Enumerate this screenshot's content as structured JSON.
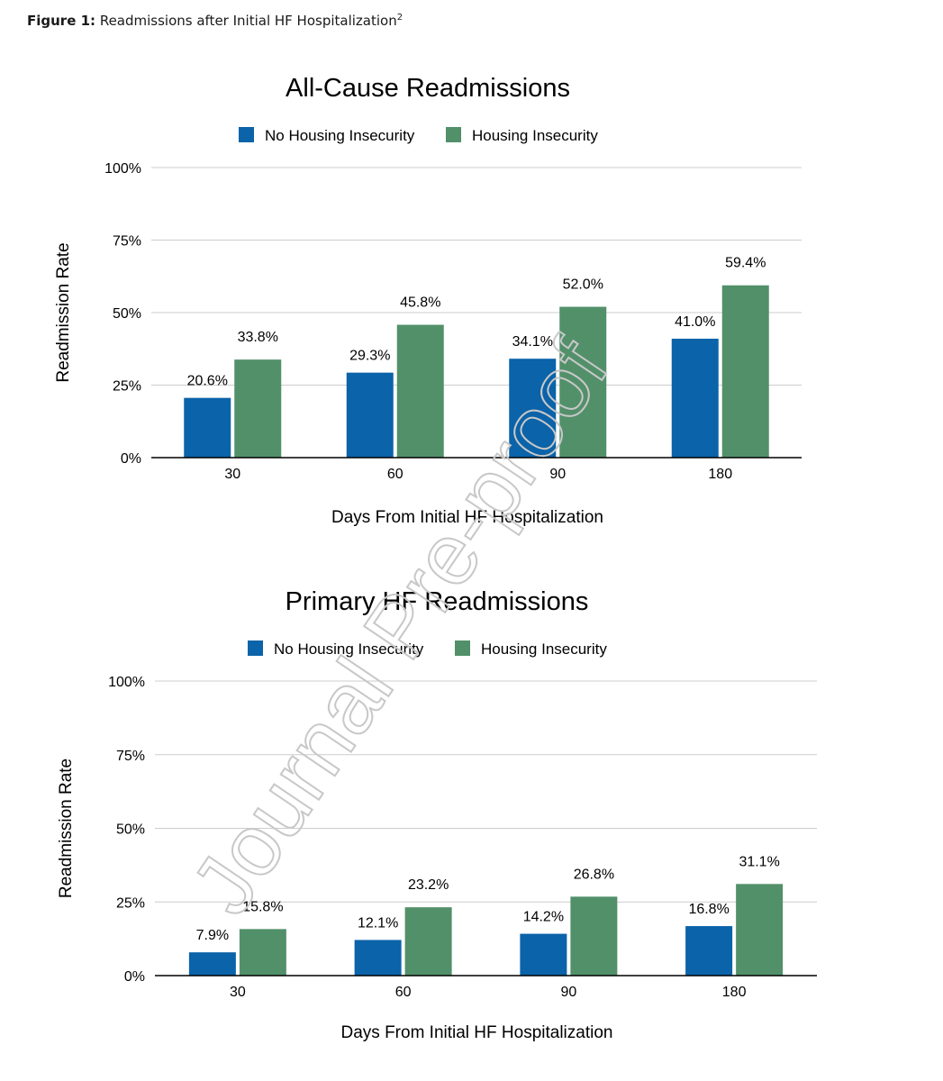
{
  "caption": {
    "label": "Figure 1:",
    "text": " Readmissions after Initial HF Hospitalization",
    "sup": "2"
  },
  "watermark": "Journal Pre-proof",
  "colors": {
    "no_housing": "#0b63a9",
    "housing": "#52906a",
    "grid": "#cccccc",
    "axis": "#000000",
    "watermark": "#c8c8c8"
  },
  "chart_data": [
    {
      "type": "bar",
      "title": "All-Cause Readmissions",
      "xlabel": "Days From Initial HF Hospitalization",
      "ylabel": "Readmission Rate",
      "categories": [
        "30",
        "60",
        "90",
        "180"
      ],
      "yticks": [
        "0%",
        "25%",
        "50%",
        "75%",
        "100%"
      ],
      "ylim": [
        0,
        100
      ],
      "legend_position": "top-center",
      "grid": true,
      "series": [
        {
          "name": "No Housing Insecurity",
          "values": [
            20.6,
            29.3,
            34.1,
            41.0
          ],
          "labels": [
            "20.6%",
            "29.3%",
            "34.1%",
            "41.0%"
          ]
        },
        {
          "name": "Housing Insecurity",
          "values": [
            33.8,
            45.8,
            52.0,
            59.4
          ],
          "labels": [
            "33.8%",
            "45.8%",
            "52.0%",
            "59.4%"
          ]
        }
      ]
    },
    {
      "type": "bar",
      "title": "Primary HF Readmissions",
      "xlabel": "Days From Initial HF Hospitalization",
      "ylabel": "Readmission Rate",
      "categories": [
        "30",
        "60",
        "90",
        "180"
      ],
      "yticks": [
        "0%",
        "25%",
        "50%",
        "75%",
        "100%"
      ],
      "ylim": [
        0,
        100
      ],
      "legend_position": "top-center",
      "grid": true,
      "series": [
        {
          "name": "No Housing Insecurity",
          "values": [
            7.9,
            12.1,
            14.2,
            16.8
          ],
          "labels": [
            "7.9%",
            "12.1%",
            "14.2%",
            "16.8%"
          ]
        },
        {
          "name": "Housing Insecurity",
          "values": [
            15.8,
            23.2,
            26.8,
            31.1
          ],
          "labels": [
            "15.8%",
            "23.2%",
            "26.8%",
            "31.1%"
          ]
        }
      ]
    }
  ]
}
